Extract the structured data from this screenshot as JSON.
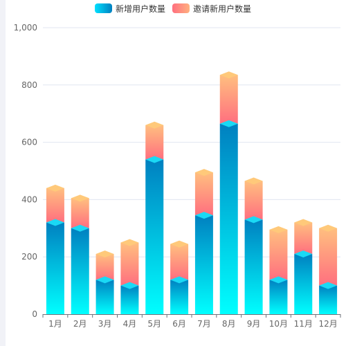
{
  "chart_data": {
    "type": "bar",
    "stacked": true,
    "categories": [
      "1月",
      "2月",
      "3月",
      "4月",
      "5月",
      "6月",
      "7月",
      "8月",
      "9月",
      "10月",
      "11月",
      "12月"
    ],
    "series": [
      {
        "name": "新增用户数量",
        "values": [
          320,
          300,
          120,
          100,
          540,
          120,
          345,
          665,
          330,
          120,
          210,
          100
        ],
        "gradient": [
          "#00ffff",
          "#0080c0"
        ],
        "cap_color": "#1ad9f5"
      },
      {
        "name": "邀请新用户数量",
        "values": [
          120,
          105,
          90,
          150,
          120,
          125,
          150,
          170,
          135,
          175,
          110,
          200
        ],
        "gradient": [
          "#ff6f7f",
          "#ffbf7f"
        ],
        "cap_color": "#ffc97a"
      }
    ],
    "ylim": [
      0,
      1000
    ],
    "yticks": [
      "0",
      "200",
      "400",
      "600",
      "800",
      "1,000"
    ],
    "ytick_values": [
      0,
      200,
      400,
      600,
      800,
      1000
    ],
    "grid": true,
    "legend_position": "top-center"
  }
}
